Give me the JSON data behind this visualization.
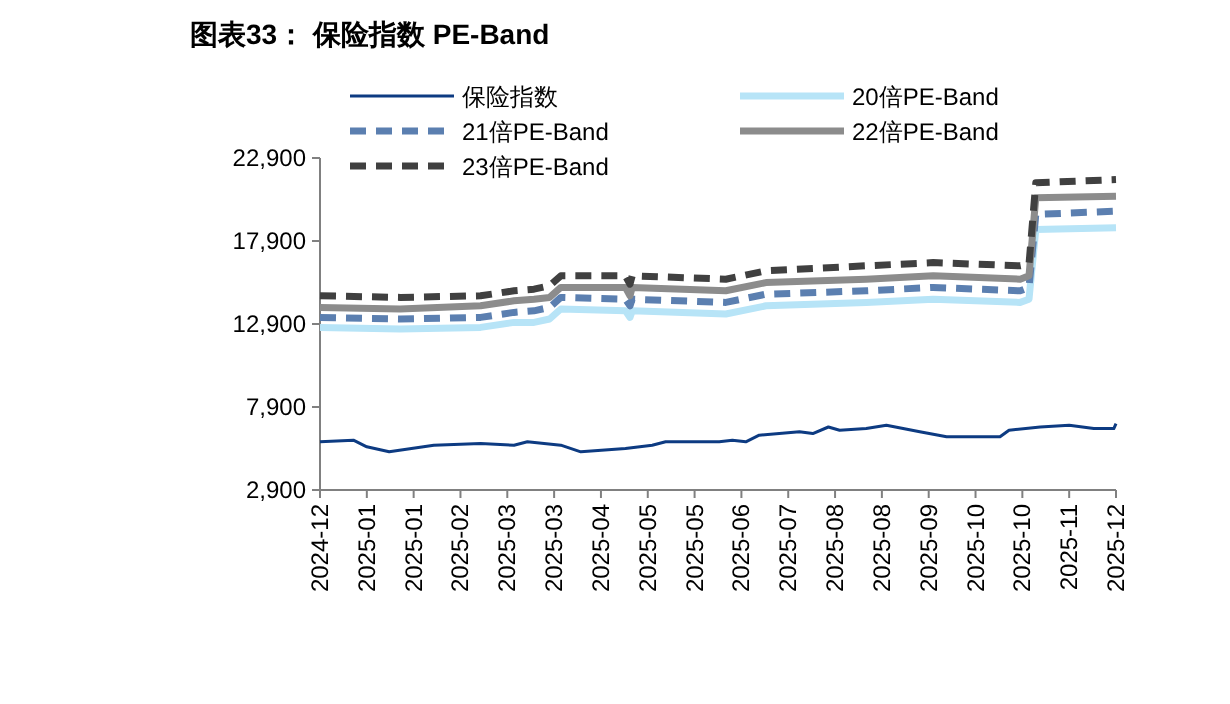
{
  "chart_data": {
    "type": "line",
    "title": "图表33： 保险指数 PE-Band",
    "legend": "top left",
    "grid": false,
    "xlim": [
      "2024-12-13",
      "2025-12-05"
    ],
    "xticks": [
      {
        "value": "2024-12-13",
        "label": "2024-12"
      },
      {
        "value": "2025-01-03",
        "label": "2025-01"
      },
      {
        "value": "2025-01-24",
        "label": "2025-01"
      },
      {
        "value": "2025-02-14",
        "label": "2025-02"
      },
      {
        "value": "2025-03-07",
        "label": "2025-03"
      },
      {
        "value": "2025-03-28",
        "label": "2025-03"
      },
      {
        "value": "2025-04-18",
        "label": "2025-04"
      },
      {
        "value": "2025-05-09",
        "label": "2025-05"
      },
      {
        "value": "2025-05-30",
        "label": "2025-05"
      },
      {
        "value": "2025-06-20",
        "label": "2025-06"
      },
      {
        "value": "2025-07-11",
        "label": "2025-07"
      },
      {
        "value": "2025-08-01",
        "label": "2025-08"
      },
      {
        "value": "2025-08-22",
        "label": "2025-08"
      },
      {
        "value": "2025-09-12",
        "label": "2025-09"
      },
      {
        "value": "2025-10-03",
        "label": "2025-10"
      },
      {
        "value": "2025-10-24",
        "label": "2025-10"
      },
      {
        "value": "2025-11-14",
        "label": "2025-11"
      },
      {
        "value": "2025-12-05",
        "label": "2025-12"
      }
    ],
    "ylim": [
      2900,
      22900
    ],
    "yticks": [
      {
        "value": 2900,
        "label": "2,900"
      },
      {
        "value": 7900,
        "label": "7,900"
      },
      {
        "value": 12900,
        "label": "12,900"
      },
      {
        "value": 17900,
        "label": "17,900"
      },
      {
        "value": 22900,
        "label": "22,900"
      }
    ],
    "series": [
      {
        "name": "保险指数",
        "color": "#0d3b82",
        "line_style": "solid",
        "x": [
          "2024-12-13",
          "2024-12-28",
          "2025-01-03",
          "2025-01-13",
          "2025-02-02",
          "2025-02-23",
          "2025-03-10",
          "2025-03-16",
          "2025-03-31",
          "2025-04-09",
          "2025-04-29",
          "2025-05-11",
          "2025-05-17",
          "2025-06-10",
          "2025-06-16",
          "2025-06-22",
          "2025-06-28",
          "2025-07-16",
          "2025-07-22",
          "2025-07-29",
          "2025-08-03",
          "2025-08-15",
          "2025-08-24",
          "2025-09-08",
          "2025-09-20",
          "2025-10-14",
          "2025-10-18",
          "2025-11-01",
          "2025-11-14",
          "2025-11-25",
          "2025-12-04",
          "2025-12-05"
        ],
        "values": [
          5800,
          5900,
          5500,
          5200,
          5600,
          5700,
          5600,
          5800,
          5600,
          5200,
          5400,
          5600,
          5800,
          5800,
          5900,
          5800,
          6200,
          6400,
          6300,
          6700,
          6500,
          6600,
          6800,
          6400,
          6100,
          6100,
          6500,
          6700,
          6800,
          6600,
          6600,
          6900
        ]
      },
      {
        "name": "20倍PE-Band",
        "color": "#b7e4f7",
        "line_style": "solid",
        "x": [
          "2024-12-13",
          "2025-01-18",
          "2025-02-23",
          "2025-03-10",
          "2025-03-19",
          "2025-03-26",
          "2025-03-31",
          "2025-04-29",
          "2025-05-01",
          "2025-05-02",
          "2025-06-13",
          "2025-07-01",
          "2025-08-15",
          "2025-09-14",
          "2025-10-23",
          "2025-10-27",
          "2025-10-30",
          "2025-12-05"
        ],
        "values": [
          12700,
          12600,
          12700,
          13000,
          13000,
          13200,
          13800,
          13700,
          13300,
          13700,
          13500,
          14000,
          14200,
          14400,
          14200,
          14400,
          18600,
          18700
        ]
      },
      {
        "name": "21倍PE-Band",
        "color": "#5b7fb0",
        "line_style": "dashed",
        "x": [
          "2024-12-13",
          "2025-01-18",
          "2025-02-23",
          "2025-03-10",
          "2025-03-19",
          "2025-03-26",
          "2025-03-31",
          "2025-04-29",
          "2025-05-01",
          "2025-05-02",
          "2025-06-13",
          "2025-07-01",
          "2025-08-15",
          "2025-09-14",
          "2025-10-23",
          "2025-10-27",
          "2025-10-30",
          "2025-12-05"
        ],
        "values": [
          13300,
          13200,
          13300,
          13600,
          13700,
          13900,
          14500,
          14400,
          14000,
          14400,
          14200,
          14700,
          14900,
          15100,
          14900,
          15100,
          19500,
          19700
        ]
      },
      {
        "name": "22倍PE-Band",
        "color": "#8c8c8c",
        "line_style": "solid",
        "x": [
          "2024-12-13",
          "2025-01-18",
          "2025-02-23",
          "2025-03-10",
          "2025-03-19",
          "2025-03-26",
          "2025-03-31",
          "2025-04-29",
          "2025-05-01",
          "2025-05-02",
          "2025-06-13",
          "2025-07-01",
          "2025-08-15",
          "2025-09-14",
          "2025-10-23",
          "2025-10-27",
          "2025-10-30",
          "2025-12-05"
        ],
        "values": [
          13900,
          13800,
          14000,
          14300,
          14400,
          14500,
          15100,
          15100,
          14600,
          15100,
          14900,
          15400,
          15600,
          15800,
          15600,
          15800,
          20500,
          20600
        ]
      },
      {
        "name": "23倍PE-Band",
        "color": "#404040",
        "line_style": "dashed",
        "x": [
          "2024-12-13",
          "2025-01-18",
          "2025-02-23",
          "2025-03-10",
          "2025-03-19",
          "2025-03-26",
          "2025-03-31",
          "2025-04-29",
          "2025-05-01",
          "2025-05-02",
          "2025-06-13",
          "2025-07-01",
          "2025-08-15",
          "2025-09-14",
          "2025-10-23",
          "2025-10-27",
          "2025-10-30",
          "2025-12-05"
        ],
        "values": [
          14600,
          14500,
          14600,
          14900,
          15000,
          15200,
          15800,
          15800,
          15300,
          15800,
          15600,
          16100,
          16400,
          16600,
          16400,
          16500,
          21400,
          21600
        ]
      }
    ]
  }
}
